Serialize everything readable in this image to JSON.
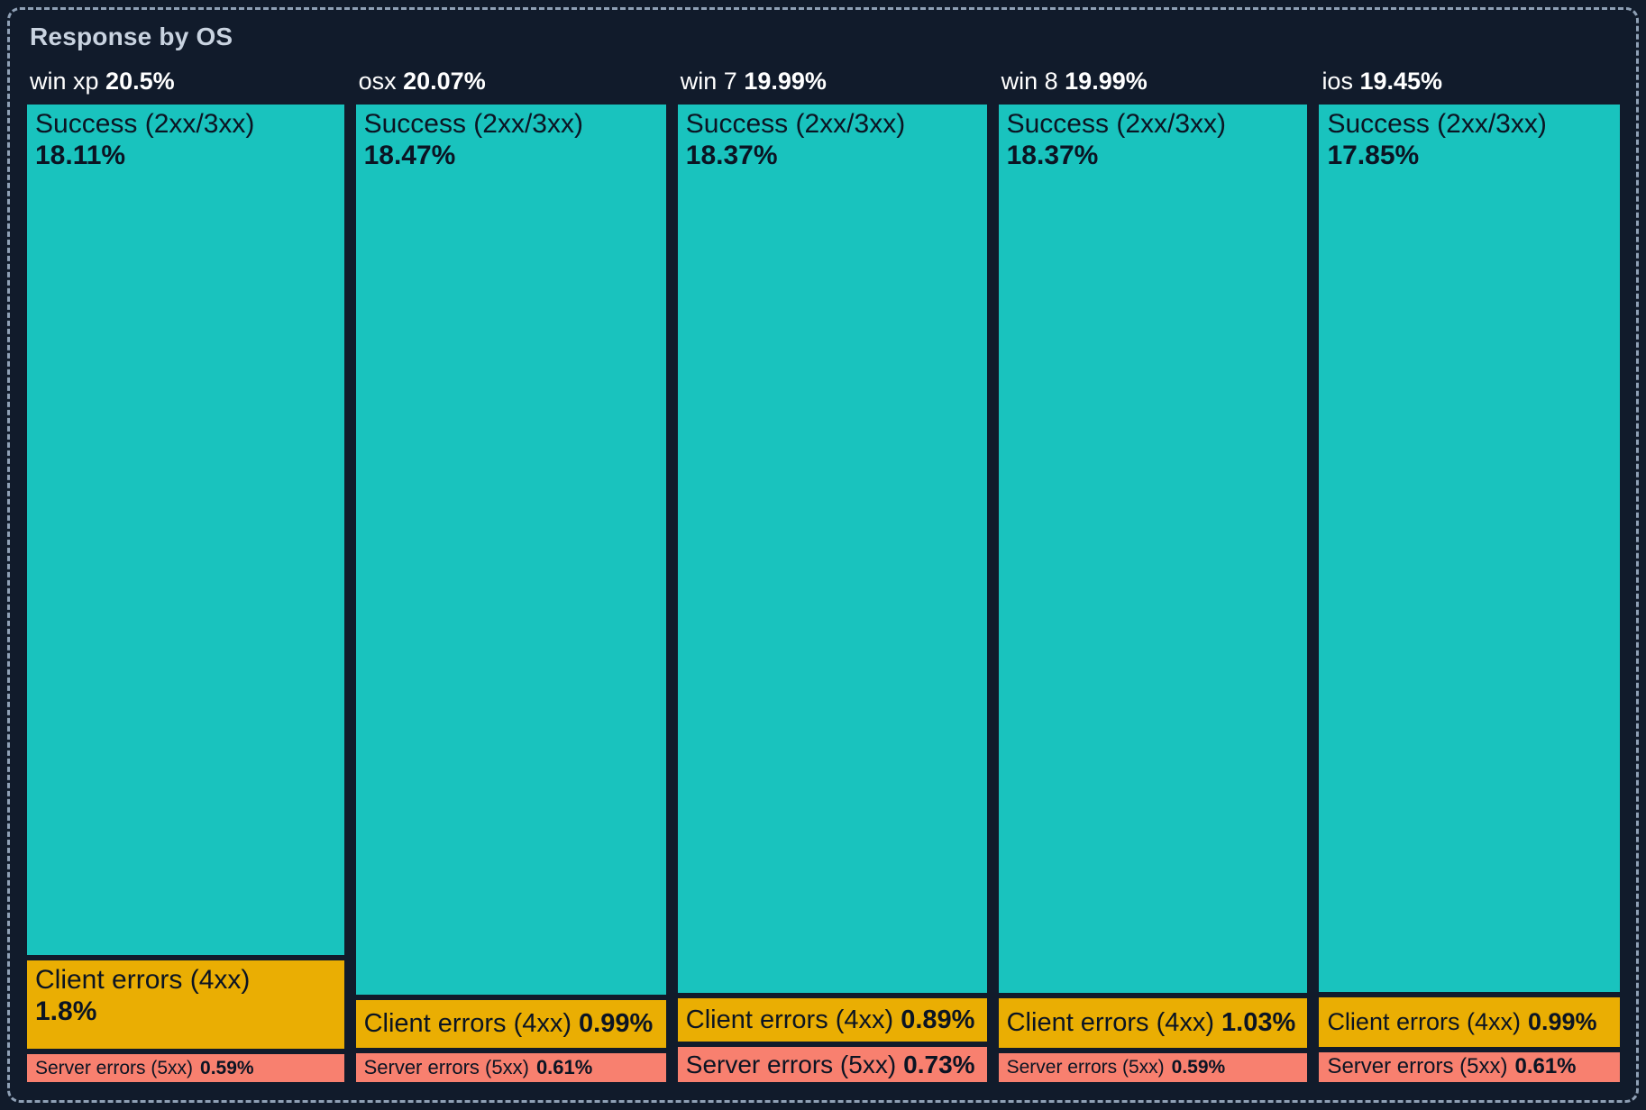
{
  "chart_data": {
    "type": "treemap",
    "title": "Response by OS",
    "layout_hint": "vertical-columns-per-os, segment height proportional to percent",
    "legend": false,
    "units": "%",
    "groups": [
      {
        "label": "win xp",
        "total_pct": "20.5%",
        "total_value": 20.5,
        "segments": [
          {
            "name": "Success (2xx/3xx)",
            "pct": "18.11%",
            "value": 18.11,
            "category": "success"
          },
          {
            "name": "Client errors (4xx)",
            "pct": "1.8%",
            "value": 1.8,
            "category": "client_errors"
          },
          {
            "name": "Server errors (5xx)",
            "pct": "0.59%",
            "value": 0.59,
            "category": "server_errors"
          }
        ]
      },
      {
        "label": "osx",
        "total_pct": "20.07%",
        "total_value": 20.07,
        "segments": [
          {
            "name": "Success (2xx/3xx)",
            "pct": "18.47%",
            "value": 18.47,
            "category": "success"
          },
          {
            "name": "Client errors (4xx)",
            "pct": "0.99%",
            "value": 0.99,
            "category": "client_errors"
          },
          {
            "name": "Server errors (5xx)",
            "pct": "0.61%",
            "value": 0.61,
            "category": "server_errors"
          }
        ]
      },
      {
        "label": "win 7",
        "total_pct": "19.99%",
        "total_value": 19.99,
        "segments": [
          {
            "name": "Success (2xx/3xx)",
            "pct": "18.37%",
            "value": 18.37,
            "category": "success"
          },
          {
            "name": "Client errors (4xx)",
            "pct": "0.89%",
            "value": 0.89,
            "category": "client_errors"
          },
          {
            "name": "Server errors (5xx)",
            "pct": "0.73%",
            "value": 0.73,
            "category": "server_errors"
          }
        ]
      },
      {
        "label": "win 8",
        "total_pct": "19.99%",
        "total_value": 19.99,
        "segments": [
          {
            "name": "Success (2xx/3xx)",
            "pct": "18.37%",
            "value": 18.37,
            "category": "success"
          },
          {
            "name": "Client errors (4xx)",
            "pct": "1.03%",
            "value": 1.03,
            "category": "client_errors"
          },
          {
            "name": "Server errors (5xx)",
            "pct": "0.59%",
            "value": 0.59,
            "category": "server_errors"
          }
        ]
      },
      {
        "label": "ios",
        "total_pct": "19.45%",
        "total_value": 19.45,
        "segments": [
          {
            "name": "Success (2xx/3xx)",
            "pct": "17.85%",
            "value": 17.85,
            "category": "success"
          },
          {
            "name": "Client errors (4xx)",
            "pct": "0.99%",
            "value": 0.99,
            "category": "client_errors"
          },
          {
            "name": "Server errors (5xx)",
            "pct": "0.61%",
            "value": 0.61,
            "category": "server_errors"
          }
        ]
      }
    ],
    "colors": {
      "success": "#19c3be",
      "client_errors": "#eaae03",
      "server_errors": "#f8806f",
      "background": "#111b2b",
      "title_text": "#c9d3e0",
      "header_text": "#ffffff",
      "segment_text": "#0b1423",
      "panel_border": "#8fa0b5"
    }
  }
}
